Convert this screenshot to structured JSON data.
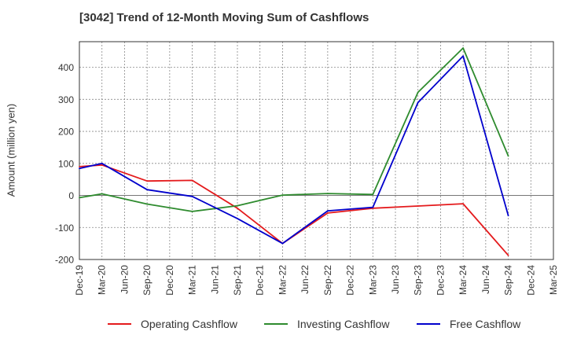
{
  "chart_data": {
    "type": "line",
    "title": "[3042]  Trend of 12-Month Moving Sum of Cashflows",
    "xlabel": "",
    "ylabel": "Amount (million yen)",
    "categories": [
      "Dec-19",
      "Mar-20",
      "Jun-20",
      "Sep-20",
      "Dec-20",
      "Mar-21",
      "Jun-21",
      "Sep-21",
      "Dec-21",
      "Mar-22",
      "Jun-22",
      "Sep-22",
      "Dec-22",
      "Mar-23",
      "Jun-23",
      "Sep-23",
      "Dec-23",
      "Mar-24",
      "Jun-24",
      "Sep-24",
      "Dec-24",
      "Mar-25"
    ],
    "ylim": [
      -200,
      480
    ],
    "yticks": [
      -200,
      -100,
      0,
      100,
      200,
      300,
      400
    ],
    "grid": true,
    "legend_position": "bottom",
    "series": [
      {
        "name": "Operating Cashflow",
        "color": "#e41a1c",
        "values": [
          90,
          95,
          null,
          45,
          null,
          47,
          null,
          -40,
          null,
          -150,
          null,
          -55,
          null,
          -40,
          null,
          -33,
          null,
          -26,
          null,
          -187,
          null,
          null
        ]
      },
      {
        "name": "Investing Cashflow",
        "color": "#2e8b2e",
        "values": [
          -7,
          5,
          null,
          -27,
          null,
          -50,
          null,
          -32,
          null,
          1,
          null,
          6,
          null,
          3,
          null,
          322,
          null,
          460,
          null,
          123,
          null,
          null
        ]
      },
      {
        "name": "Free Cashflow",
        "color": "#0000cc",
        "values": [
          84,
          100,
          null,
          18,
          null,
          -3,
          null,
          -72,
          null,
          -150,
          null,
          -48,
          null,
          -37,
          null,
          290,
          null,
          435,
          null,
          -63,
          null,
          null
        ]
      }
    ]
  }
}
